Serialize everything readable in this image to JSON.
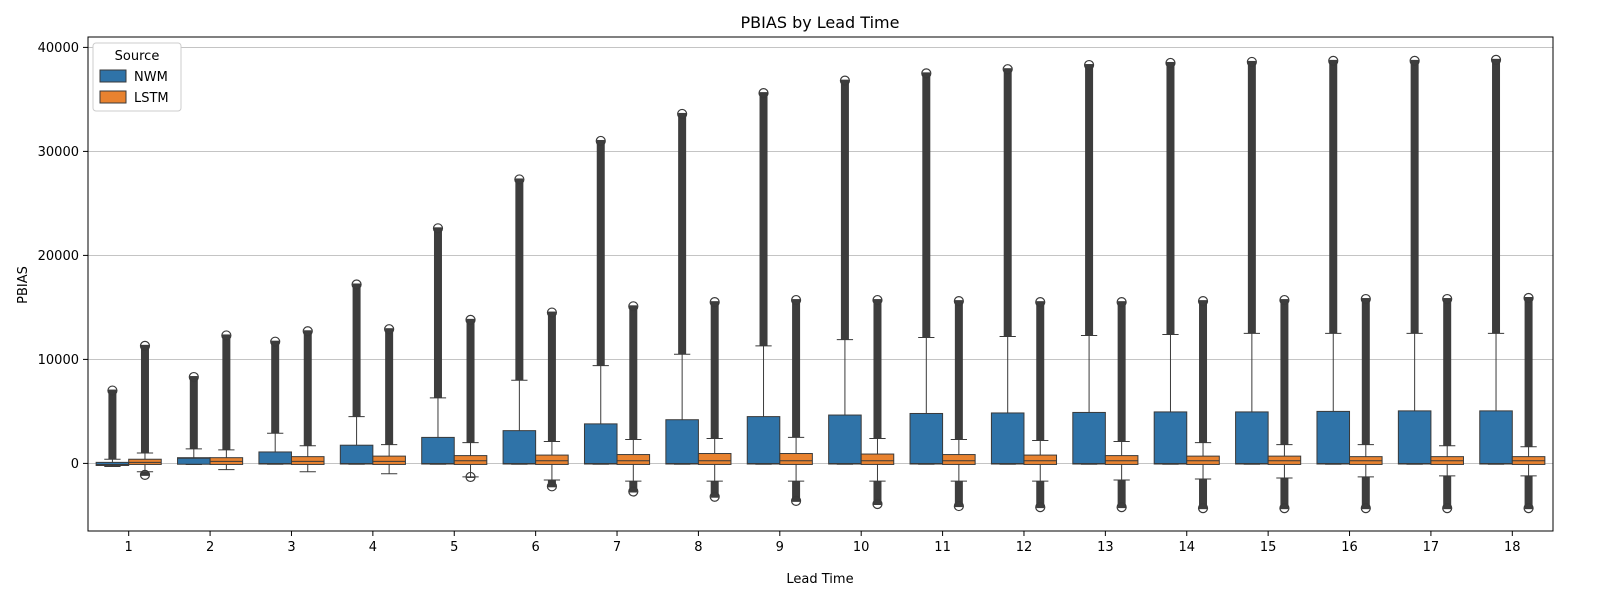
{
  "chart_data": {
    "type": "box",
    "title": "PBIAS by Lead Time",
    "xlabel": "Lead Time",
    "ylabel": "PBIAS",
    "ylim": [
      -6500,
      41000
    ],
    "yticks": [
      0,
      10000,
      20000,
      30000,
      40000
    ],
    "grid": "y",
    "legend": {
      "title": "Source",
      "position": "top-left"
    },
    "categories": [
      "1",
      "2",
      "3",
      "4",
      "5",
      "6",
      "7",
      "8",
      "9",
      "10",
      "11",
      "12",
      "13",
      "14",
      "15",
      "16",
      "17",
      "18"
    ],
    "series": [
      {
        "name": "NWM",
        "color": "#2f73a8",
        "q1": [
          -200,
          -80,
          -60,
          -60,
          -60,
          -60,
          -60,
          -60,
          -60,
          -60,
          -60,
          -60,
          -60,
          -60,
          -60,
          -60,
          -60,
          -60
        ],
        "median": [
          -100,
          500,
          -10,
          -10,
          -10,
          -10,
          -10,
          -10,
          -10,
          -10,
          -10,
          -10,
          -10,
          -10,
          -10,
          -10,
          -10,
          -10
        ],
        "q3": [
          100,
          550,
          1100,
          1750,
          2500,
          3150,
          3800,
          4200,
          4500,
          4650,
          4800,
          4850,
          4900,
          4950,
          4950,
          5000,
          5050,
          5050
        ],
        "whisker_low": [
          -300,
          -100,
          -80,
          -80,
          -80,
          -80,
          -80,
          -80,
          -80,
          -80,
          -80,
          -80,
          -80,
          -80,
          -80,
          -80,
          -80,
          -80
        ],
        "whisker_high": [
          400,
          1400,
          2900,
          4500,
          6300,
          8000,
          9400,
          10500,
          11300,
          11900,
          12100,
          12200,
          12300,
          12400,
          12500,
          12500,
          12500,
          12500
        ],
        "outlier_max": [
          7100,
          8400,
          11800,
          17300,
          22700,
          27400,
          31100,
          33700,
          35700,
          36900,
          37600,
          38000,
          38400,
          38600,
          38700,
          38800,
          38800,
          38900
        ],
        "outlier_min": [
          null,
          null,
          null,
          null,
          null,
          null,
          null,
          null,
          null,
          null,
          null,
          null,
          null,
          null,
          null,
          null,
          null,
          null
        ]
      },
      {
        "name": "LSTM",
        "color": "#e8822f",
        "q1": [
          -100,
          -100,
          -100,
          -100,
          -100,
          -100,
          -100,
          -100,
          -100,
          -100,
          -100,
          -100,
          -100,
          -100,
          -100,
          -100,
          -100,
          -100
        ],
        "median": [
          100,
          200,
          200,
          200,
          250,
          250,
          250,
          250,
          250,
          250,
          250,
          250,
          250,
          250,
          250,
          250,
          250,
          250
        ],
        "q3": [
          400,
          550,
          650,
          700,
          750,
          800,
          850,
          950,
          950,
          900,
          850,
          800,
          750,
          700,
          700,
          650,
          650,
          650
        ],
        "whisker_low": [
          -800,
          -600,
          -800,
          -1000,
          -1300,
          -1600,
          -1700,
          -1700,
          -1700,
          -1700,
          -1700,
          -1700,
          -1600,
          -1500,
          -1400,
          -1300,
          -1200,
          -1200
        ],
        "whisker_high": [
          1000,
          1300,
          1700,
          1800,
          2000,
          2100,
          2300,
          2400,
          2500,
          2400,
          2300,
          2200,
          2100,
          2000,
          1800,
          1800,
          1700,
          1600
        ],
        "outlier_max": [
          11400,
          12400,
          12800,
          13000,
          13900,
          14600,
          15200,
          15600,
          15800,
          15800,
          15700,
          15600,
          15600,
          15700,
          15800,
          15900,
          15900,
          16000
        ],
        "outlier_min": [
          -1200,
          null,
          null,
          null,
          -1400,
          -2300,
          -2800,
          -3300,
          -3700,
          -4000,
          -4200,
          -4300,
          -4300,
          -4400,
          -4400,
          -4400,
          -4400,
          -4400
        ]
      }
    ]
  }
}
